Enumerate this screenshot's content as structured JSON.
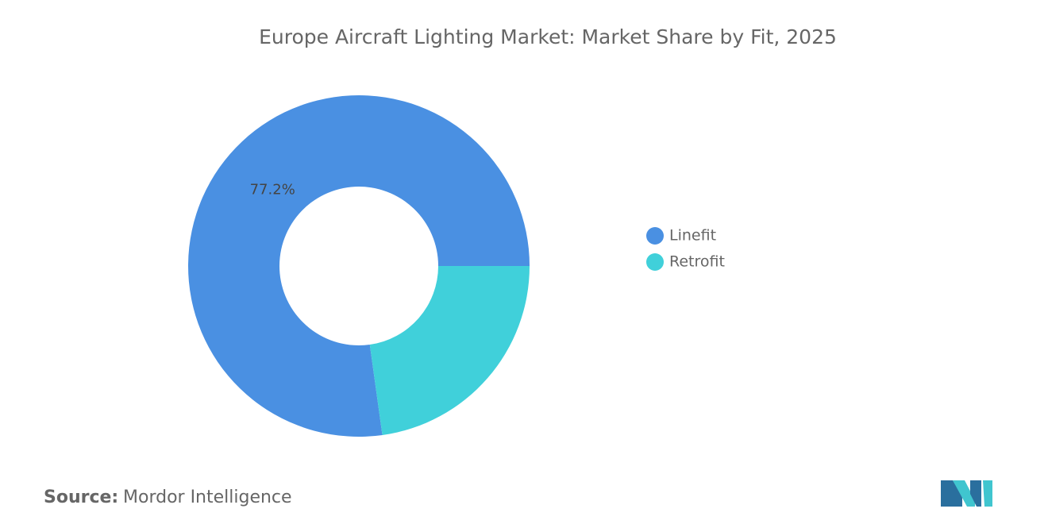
{
  "chart_data": {
    "type": "donut",
    "title": "Europe Aircraft Lighting Market: Market Share by Fit, 2025",
    "categories": [
      "Linefit",
      "Retrofit"
    ],
    "values": [
      77.2,
      22.8
    ],
    "value_labels": [
      "77.2%",
      null
    ],
    "colors": [
      "#4a90e2",
      "#40d0da"
    ],
    "legend": "right"
  },
  "source_label": "Source:",
  "source": "Mordor Intelligence"
}
